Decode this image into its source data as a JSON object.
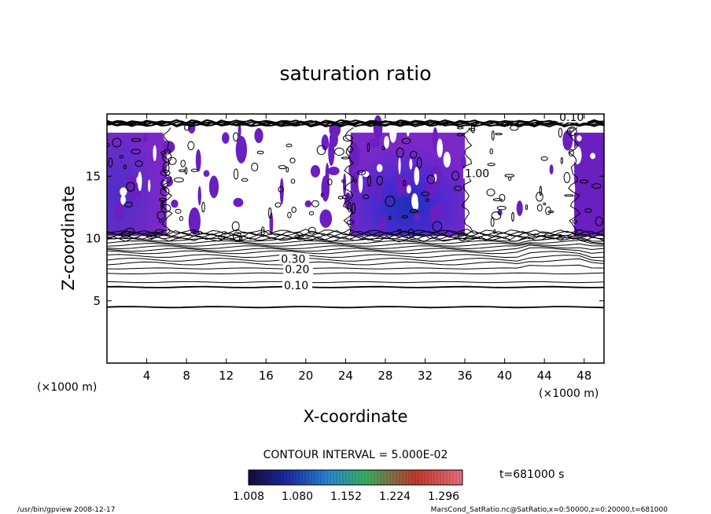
{
  "chart_data": {
    "type": "heatmap",
    "title": "saturation ratio",
    "xlabel": "X-coordinate",
    "ylabel": "Z-coordinate",
    "x_unit_left": "(×1000 m)",
    "x_unit_right": "(×1000 m)",
    "xlim": [
      0,
      50
    ],
    "ylim": [
      0,
      20
    ],
    "x_ticks": [
      4,
      8,
      12,
      16,
      20,
      24,
      28,
      32,
      36,
      40,
      44,
      48
    ],
    "y_ticks": [
      5,
      10,
      15
    ],
    "contour_interval_label": "CONTOUR INTERVAL = 5.000E-02",
    "time_label": "t=681000 s",
    "colorbar": {
      "ticks": [
        "1.008",
        "1.080",
        "1.152",
        "1.224",
        "1.296"
      ],
      "colors": [
        "#1a0a3a",
        "#1b2aa8",
        "#2a8ad0",
        "#3ab060",
        "#c23a2a",
        "#e87080"
      ]
    },
    "contour_labels": [
      {
        "text": "0.10",
        "x": 17.8,
        "z": 6.0
      },
      {
        "text": "0.20",
        "x": 17.9,
        "z": 7.3
      },
      {
        "text": "0.30",
        "x": 17.5,
        "z": 8.1
      },
      {
        "text": "0.10",
        "x": 45.5,
        "z": 19.5
      },
      {
        "text": "1.00",
        "x": 36.0,
        "z": 15.0
      }
    ],
    "horizontal_contours_z": [
      4.5,
      6.1,
      6.5,
      7.2,
      7.6,
      8.0,
      8.3,
      8.6,
      8.9,
      9.1,
      9.3,
      9.5,
      9.7,
      9.9
    ],
    "saturated_regions": [
      {
        "x0": 0,
        "x1": 6,
        "z0": 10.2,
        "z1": 18.5,
        "color": "#6a1fc0"
      },
      {
        "x0": 24.5,
        "x1": 36,
        "z0": 10.2,
        "z1": 18.5,
        "color": "#5a2cc8"
      },
      {
        "x0": 47,
        "x1": 50,
        "z0": 10.2,
        "z1": 18.5,
        "color": "#6a1fc0"
      }
    ]
  },
  "footer": {
    "left": "/usr/bin/gpview   2008-12-17",
    "right": "MarsCond_SatRatio.nc@SatRatio,x=0:50000,z=0:20000,t=681000"
  }
}
